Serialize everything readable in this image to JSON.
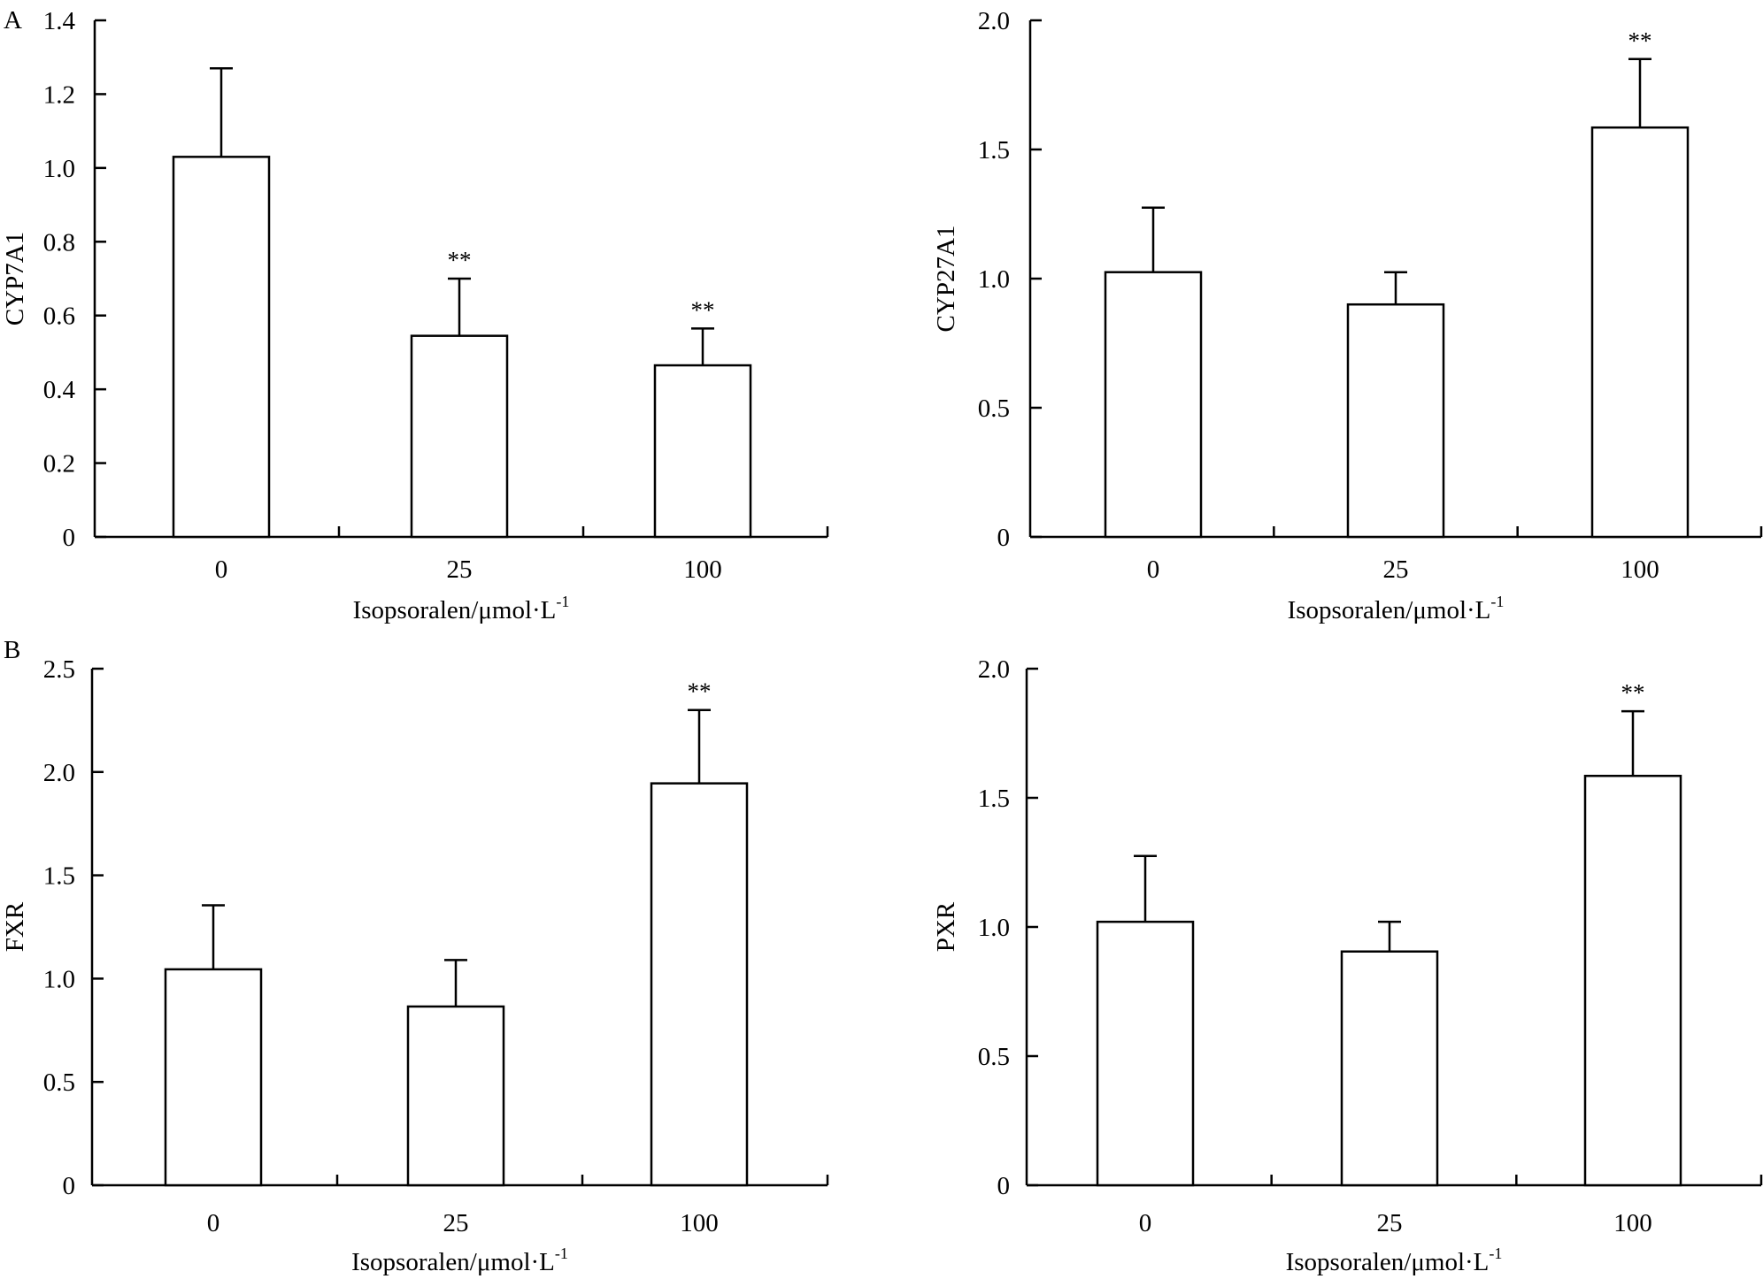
{
  "panel_letters": [
    "A",
    "B"
  ],
  "chart_data": [
    {
      "type": "bar",
      "panel": "A",
      "title": "",
      "xlabel": "Isopsoralen/μmol·L",
      "xlabel_superscript": "-1",
      "ylabel": "CYP7A1",
      "categories": [
        "0",
        "25",
        "100"
      ],
      "values": [
        1.03,
        0.545,
        0.465
      ],
      "errors": [
        0.24,
        0.155,
        0.1
      ],
      "significance": [
        "",
        "**",
        "**"
      ],
      "ylim": [
        0,
        1.4
      ],
      "yticks": [
        0,
        0.2,
        0.4,
        0.6,
        0.8,
        1.0,
        1.2,
        1.4
      ],
      "ytick_labels": [
        "0",
        "0.2",
        "0.4",
        "0.6",
        "0.8",
        "1.0",
        "1.2",
        "1.4"
      ],
      "grid": false,
      "color": "#ffffff"
    },
    {
      "type": "bar",
      "panel": "A",
      "title": "",
      "xlabel": "Isopsoralen/μmol·L",
      "xlabel_superscript": "-1",
      "ylabel": "CYP27A1",
      "categories": [
        "0",
        "25",
        "100"
      ],
      "values": [
        1.025,
        0.9,
        1.585
      ],
      "errors": [
        0.25,
        0.125,
        0.265
      ],
      "significance": [
        "",
        "",
        "**"
      ],
      "ylim": [
        0,
        2.0
      ],
      "yticks": [
        0,
        0.5,
        1.0,
        1.5,
        2.0
      ],
      "ytick_labels": [
        "0",
        "0.5",
        "1.0",
        "1.5",
        "2.0"
      ],
      "grid": false,
      "color": "#ffffff"
    },
    {
      "type": "bar",
      "panel": "B",
      "title": "",
      "xlabel": "Isopsoralen/μmol·L",
      "xlabel_superscript": "-1",
      "ylabel": "FXR",
      "categories": [
        "0",
        "25",
        "100"
      ],
      "values": [
        1.045,
        0.865,
        1.945
      ],
      "errors": [
        0.31,
        0.225,
        0.355
      ],
      "significance": [
        "",
        "",
        "**"
      ],
      "ylim": [
        0,
        2.5
      ],
      "yticks": [
        0,
        0.5,
        1.0,
        1.5,
        2.0,
        2.5
      ],
      "ytick_labels": [
        "0",
        "0.5",
        "1.0",
        "1.5",
        "2.0",
        "2.5"
      ],
      "grid": false,
      "color": "#ffffff"
    },
    {
      "type": "bar",
      "panel": "B",
      "title": "",
      "xlabel": "Isopsoralen/μmol·L",
      "xlabel_superscript": "-1",
      "ylabel": "PXR",
      "categories": [
        "0",
        "25",
        "100"
      ],
      "values": [
        1.02,
        0.905,
        1.585
      ],
      "errors": [
        0.255,
        0.115,
        0.25
      ],
      "significance": [
        "",
        "",
        "**"
      ],
      "ylim": [
        0,
        2.0
      ],
      "yticks": [
        0,
        0.5,
        1.0,
        1.5,
        2.0
      ],
      "ytick_labels": [
        "0",
        "0.5",
        "1.0",
        "1.5",
        "2.0"
      ],
      "grid": false,
      "color": "#ffffff"
    }
  ]
}
